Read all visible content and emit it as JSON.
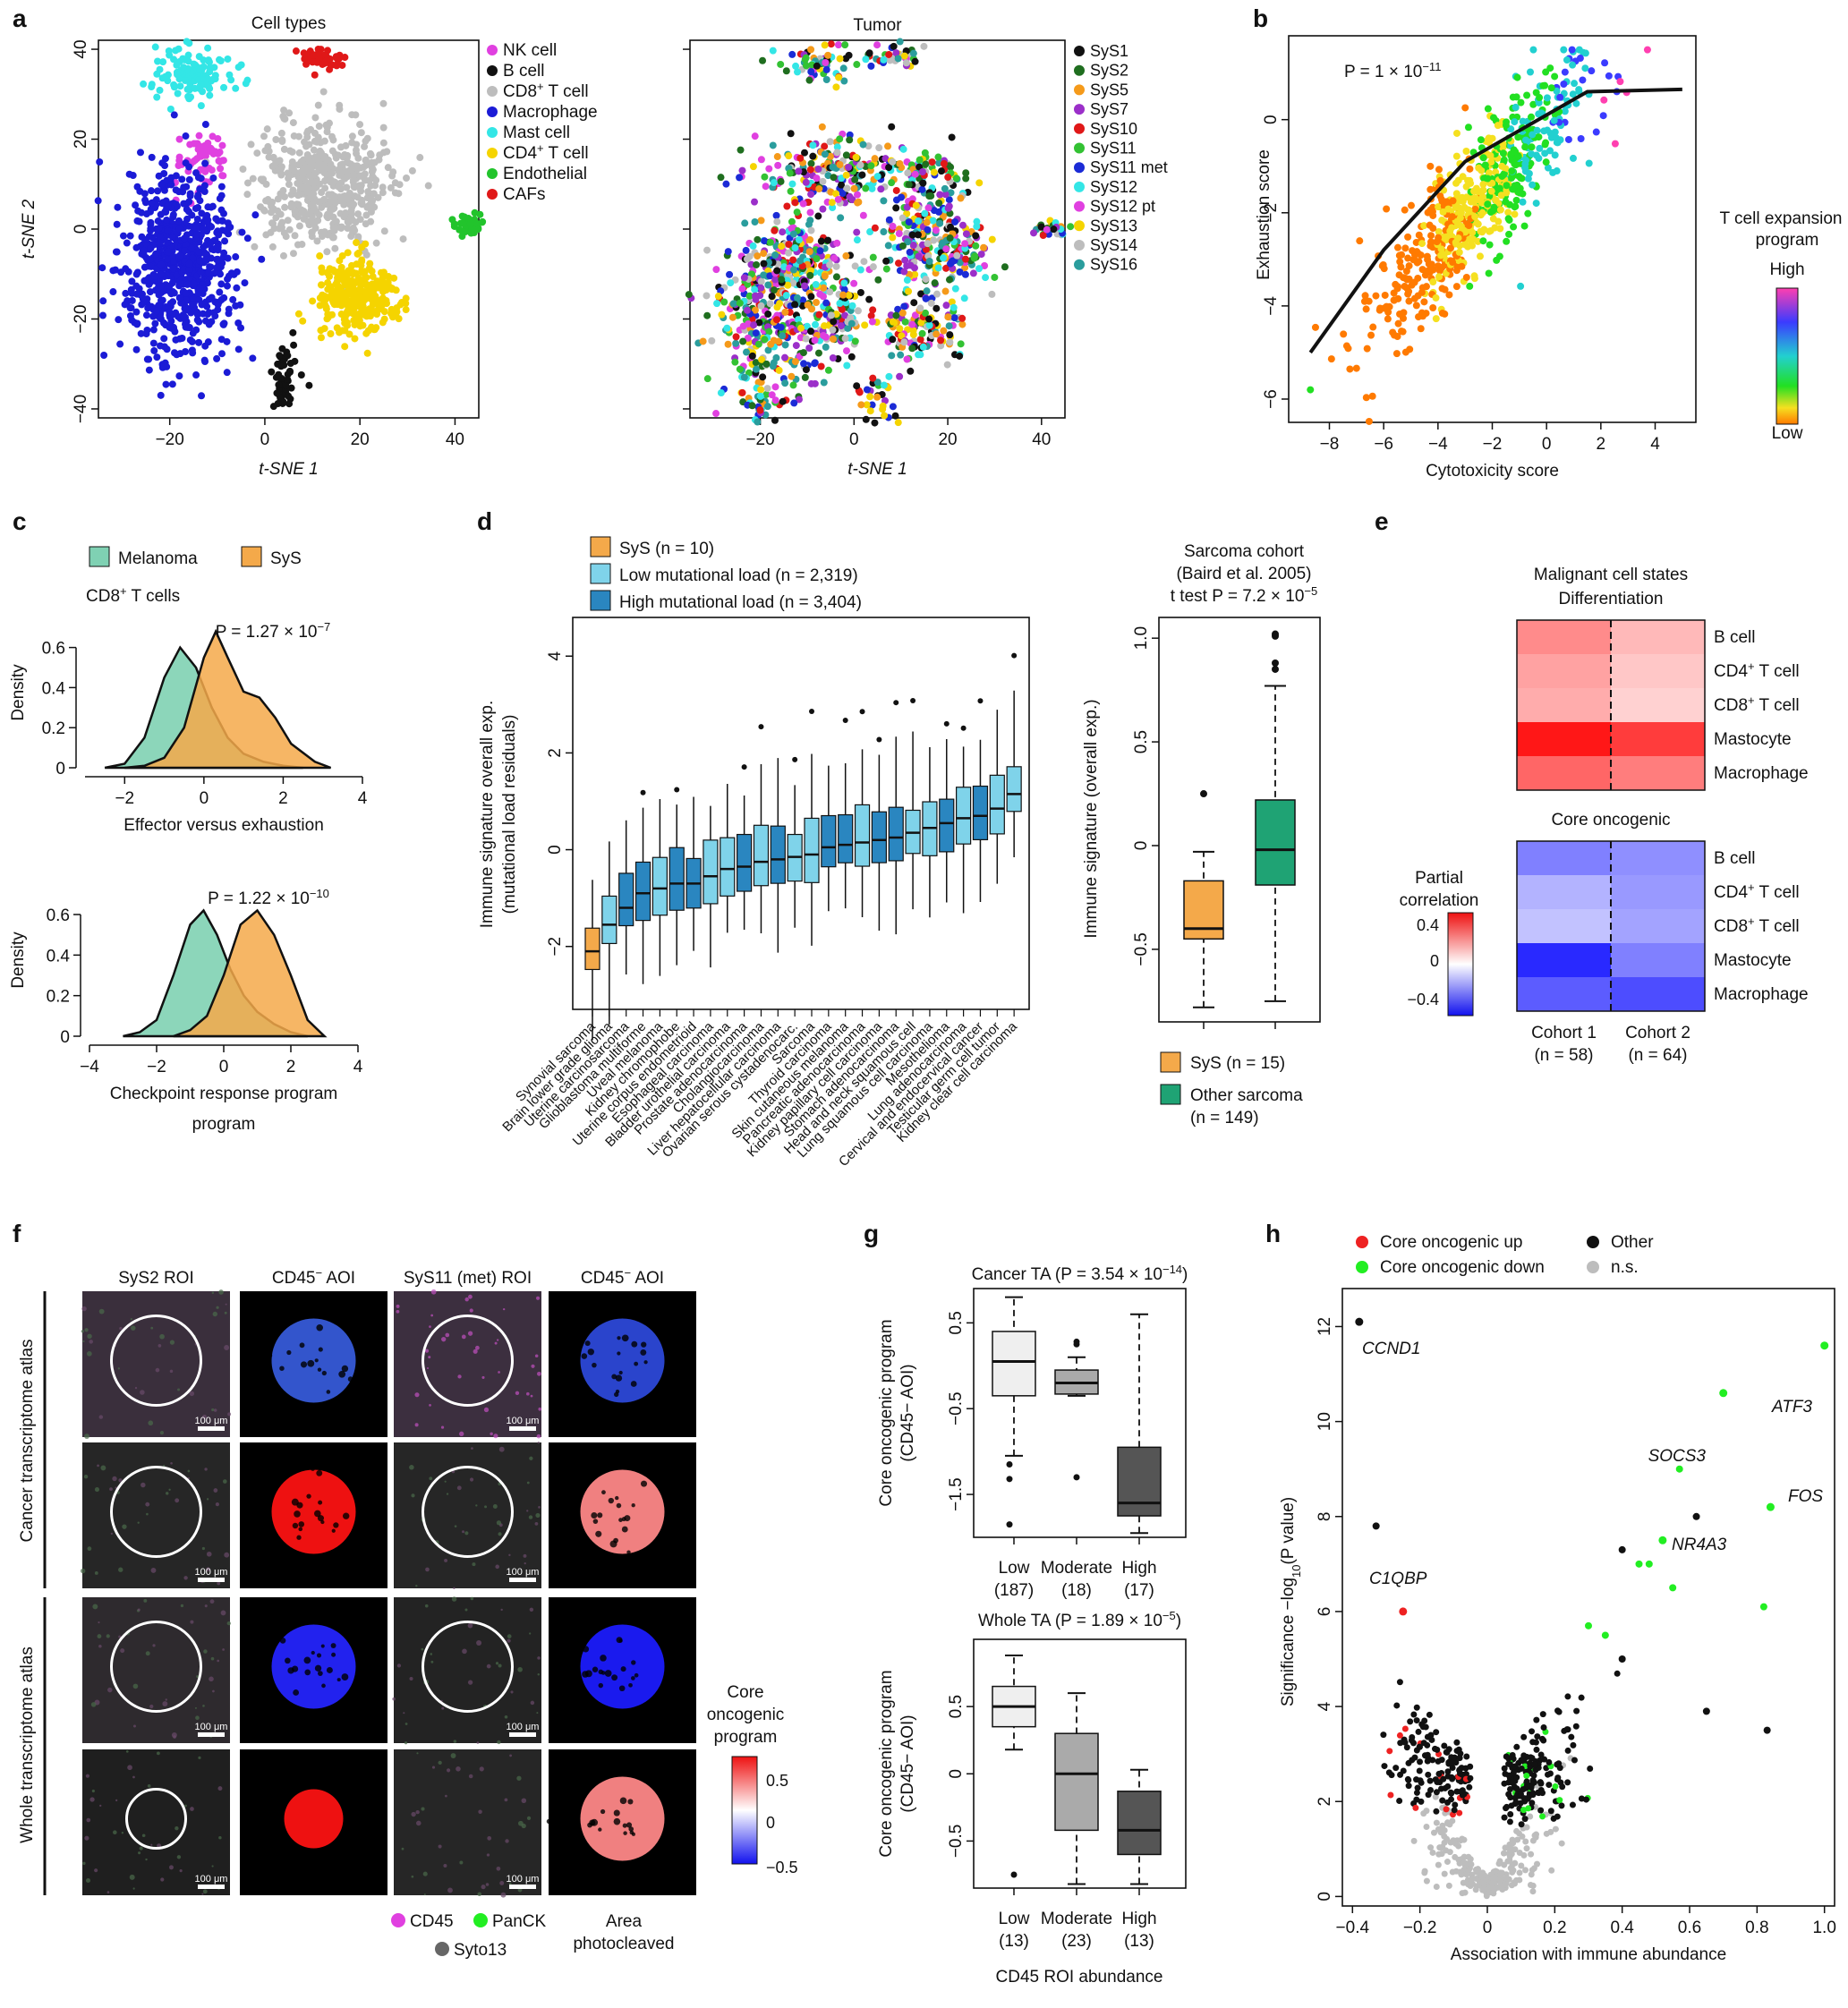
{
  "panel_letters": [
    "a",
    "b",
    "c",
    "d",
    "e",
    "f",
    "g",
    "h"
  ],
  "colors": {
    "cell_types": {
      "NK cell": "#e040e0",
      "B cell": "#111111",
      "CD8+ T cell": "#bdbdbd",
      "Macrophage": "#1b1bd6",
      "Mast cell": "#33e6e6",
      "CD4+ T cell": "#f5d400",
      "Endothelial": "#22c42c",
      "CAFs": "#e01818"
    },
    "tumors": {
      "SyS1": "#111111",
      "SyS2": "#1f6e1f",
      "SyS5": "#f59a1a",
      "SyS7": "#9b2fc9",
      "SyS10": "#e01818",
      "SyS11": "#33c233",
      "SyS11 met": "#1b2bd6",
      "SyS12": "#33e6e6",
      "SyS12 pt": "#e040e0",
      "SyS13": "#f5d400",
      "SyS14": "#bdbdbd",
      "SyS16": "#2a9d9d"
    },
    "melanoma": "#7fd1b3",
    "sys": "#f4a94a",
    "low_ml": "#7fd3ea",
    "high_ml": "#2a86c0",
    "other_sarcoma": "#1fa374",
    "core_up": "#ee2222",
    "core_down": "#22ee22",
    "other": "#111111",
    "ns": "#bdbdbd"
  },
  "chart_data": [
    {
      "id": "a1",
      "type": "scatter",
      "title": "Cell types",
      "xlabel": "t-SNE 1",
      "ylabel": "t-SNE 2",
      "xticks": [
        "−20",
        "0",
        "20",
        "40"
      ],
      "yticks": [
        "40",
        "20",
        "0",
        "−20",
        "−40"
      ],
      "xlim": [
        -35,
        45
      ],
      "ylim": [
        -42,
        42
      ],
      "legend": [
        "NK cell",
        "B cell",
        "CD8+ T cell",
        "Macrophage",
        "Mast cell",
        "CD4+ T cell",
        "Endothelial",
        "CAFs"
      ],
      "clusters": [
        {
          "name": "Mast cell",
          "cx": -15,
          "cy": 35,
          "sx": 4,
          "sy": 3,
          "n": 120
        },
        {
          "name": "CAFs",
          "cx": 12,
          "cy": 38,
          "sx": 2.5,
          "sy": 1.2,
          "n": 50
        },
        {
          "name": "NK cell",
          "cx": -13,
          "cy": 15,
          "sx": 3,
          "sy": 3,
          "n": 60
        },
        {
          "name": "CD8+ T cell",
          "cx": 12,
          "cy": 10,
          "sx": 7,
          "sy": 7,
          "n": 500
        },
        {
          "name": "Macrophage",
          "cx": -18,
          "cy": -8,
          "sx": 6,
          "sy": 10,
          "n": 700
        },
        {
          "name": "CD4+ T cell",
          "cx": 19,
          "cy": -15,
          "sx": 4,
          "sy": 4,
          "n": 300
        },
        {
          "name": "B cell",
          "cx": 4,
          "cy": -33,
          "sx": 1.5,
          "sy": 3,
          "n": 50
        },
        {
          "name": "Endothelial",
          "cx": 43,
          "cy": 1,
          "sx": 1.5,
          "sy": 1,
          "n": 40
        }
      ]
    },
    {
      "id": "a2",
      "type": "scatter",
      "title": "Tumor",
      "xlabel": "t-SNE 1",
      "xticks": [
        "−20",
        "0",
        "20",
        "40"
      ],
      "xlim": [
        -35,
        45
      ],
      "ylim": [
        -42,
        42
      ],
      "legend": [
        "SyS1",
        "SyS2",
        "SyS5",
        "SyS7",
        "SyS10",
        "SyS11",
        "SyS11 met",
        "SyS12",
        "SyS12 pt",
        "SyS13",
        "SyS14",
        "SyS16"
      ]
    },
    {
      "id": "b",
      "type": "scatter",
      "xlabel": "Cytotoxicity score",
      "ylabel": "Exhaustion score",
      "annotation": "P = 1 × 10−11",
      "xlim": [
        -9.5,
        5.5
      ],
      "ylim": [
        -6.5,
        1.8
      ],
      "xticks": [
        "−8",
        "−6",
        "−4",
        "−2",
        "0",
        "2",
        "4"
      ],
      "yticks": [
        "0",
        "−2",
        "−4",
        "−6"
      ],
      "fit": [
        [
          -8.7,
          -5.0
        ],
        [
          -6,
          -2.8
        ],
        [
          -3,
          -0.9
        ],
        [
          0,
          0.1
        ],
        [
          1.5,
          0.6
        ],
        [
          5,
          0.65
        ]
      ],
      "colorbar": {
        "title": "T cell expansion program",
        "high": "High",
        "low": "Low"
      }
    },
    {
      "id": "c1",
      "type": "area",
      "title": "CD8+ T cells",
      "xlabel": "Effector versus exhaustion",
      "ylabel": "Density",
      "annotation": "P = 1.27 × 10−7",
      "xlim": [
        -3,
        4
      ],
      "ylim": [
        0,
        0.75
      ],
      "xticks": [
        "−2",
        "0",
        "2",
        "4"
      ],
      "yticks": [
        "0",
        "0.2",
        "0.4",
        "0.6"
      ],
      "legend": [
        "Melanoma",
        "SyS"
      ],
      "series": [
        {
          "name": "Melanoma",
          "x": [
            -2.5,
            -2,
            -1.5,
            -1,
            -0.6,
            -0.2,
            0.2,
            0.6,
            1,
            1.5,
            2,
            2.5
          ],
          "values": [
            0,
            0.02,
            0.15,
            0.45,
            0.6,
            0.5,
            0.3,
            0.15,
            0.07,
            0.03,
            0.01,
            0
          ]
        },
        {
          "name": "SyS",
          "x": [
            -2,
            -1.5,
            -1,
            -0.5,
            0,
            0.3,
            0.6,
            1,
            1.4,
            1.8,
            2.2,
            2.8,
            3.2
          ],
          "values": [
            0,
            0.01,
            0.05,
            0.2,
            0.55,
            0.68,
            0.55,
            0.38,
            0.35,
            0.25,
            0.12,
            0.03,
            0
          ]
        }
      ]
    },
    {
      "id": "c2",
      "type": "area",
      "xlabel": "Checkpoint response program",
      "ylabel": "Density",
      "annotation": "P = 1.22 × 10−10",
      "xlim": [
        -4,
        4
      ],
      "ylim": [
        0,
        0.75
      ],
      "xticks": [
        "−4",
        "−2",
        "0",
        "2",
        "4"
      ],
      "yticks": [
        "0",
        "0.2",
        "0.4",
        "0.6"
      ],
      "series": [
        {
          "name": "Melanoma",
          "x": [
            -3,
            -2.5,
            -2,
            -1.5,
            -1,
            -0.6,
            -0.2,
            0.2,
            0.6,
            1,
            1.5,
            2,
            2.5
          ],
          "values": [
            0,
            0.02,
            0.08,
            0.3,
            0.55,
            0.62,
            0.5,
            0.33,
            0.2,
            0.12,
            0.06,
            0.02,
            0
          ]
        },
        {
          "name": "SyS",
          "x": [
            -1.5,
            -1,
            -0.5,
            0,
            0.5,
            1,
            1.5,
            2,
            2.5,
            3
          ],
          "values": [
            0,
            0.03,
            0.1,
            0.3,
            0.55,
            0.62,
            0.5,
            0.3,
            0.08,
            0
          ]
        }
      ]
    },
    {
      "id": "d1",
      "type": "box",
      "ylabel": "Immune signature overall exp. (mutational load residuals)",
      "ylim": [
        -3.3,
        4.8
      ],
      "yticks": [
        "−2",
        "0",
        "2",
        "4"
      ],
      "legend": [
        "SyS (n = 10)",
        "Low mutational load (n = 2,319)",
        "High mutational load (n = 3,404)"
      ],
      "categories": [
        "Synovial sarcoma",
        "Brain lower grade glioma",
        "Uterine carcinosarcoma",
        "Glioblastoma multiforme",
        "Uveal melanoma",
        "Kidney chromophobe",
        "Uterine corpus endometrioid",
        "Esophageal carcinoma",
        "Bladder urothelial carcinoma",
        "Prostate adenocarcinoma",
        "Cholangiocarcinoma",
        "Liver hepatocellular carcinoma",
        "Ovarian serous cystadenocarc.",
        "Sarcoma",
        "Thyroid carcinoma",
        "Skin cutaneous melanoma",
        "Pancreatic adenocarcinoma",
        "Kidney papillary cell carcinoma",
        "Stomach adenocarcinoma",
        "Head and neck squamous cell",
        "Lung squamous cell carcinoma",
        "Mesothelioma",
        "Lung adenocarcinoma",
        "Cervical and endocervical cancer",
        "Testicular germ cell tumor",
        "Kidney clear cell carcinoma"
      ],
      "medians": [
        -2.1,
        -1.55,
        -1.2,
        -0.9,
        -0.8,
        -0.7,
        -0.7,
        -0.55,
        -0.4,
        -0.35,
        -0.25,
        -0.2,
        -0.15,
        -0.1,
        0.05,
        0.1,
        0.15,
        0.2,
        0.25,
        0.35,
        0.45,
        0.55,
        0.65,
        0.7,
        0.85,
        1.15
      ]
    },
    {
      "id": "d2",
      "type": "box",
      "title": "Sarcoma cohort",
      "subtitle": "(Baird et al. 2005)",
      "annotation": "t test P = 7.2 × 10−5",
      "ylabel": "Immune signature (overall exp.)",
      "ylim": [
        -0.85,
        1.1
      ],
      "yticks": [
        "1.0",
        "0.5",
        "0",
        "−0.5"
      ],
      "legend": [
        "SyS (n = 15)",
        "Other sarcoma",
        "(n = 149)"
      ],
      "categories": [
        "SyS",
        "Other sarcoma"
      ],
      "medians": [
        -0.4,
        -0.02
      ],
      "q1": [
        -0.45,
        -0.19
      ],
      "q3": [
        -0.17,
        0.22
      ],
      "whisker_low": [
        -0.78,
        -0.75
      ],
      "whisker_high": [
        -0.03,
        0.77
      ]
    },
    {
      "id": "e",
      "type": "heatmap",
      "title": "Malignant cell states",
      "blocks": [
        "Differentiation",
        "Core oncogenic"
      ],
      "rows": [
        "B cell",
        "CD4+ T cell",
        "CD8+ T cell",
        "Mastocyte",
        "Macrophage"
      ],
      "columns": [
        "Cohort 1",
        "Cohort 2"
      ],
      "column_n": [
        "(n = 58)",
        "(n = 64)"
      ],
      "values_differentiation": [
        [
          0.25,
          0.15
        ],
        [
          0.2,
          0.12
        ],
        [
          0.18,
          0.1
        ],
        [
          0.5,
          0.42
        ],
        [
          0.33,
          0.28
        ]
      ],
      "values_core": [
        [
          -0.25,
          -0.22
        ],
        [
          -0.15,
          -0.2
        ],
        [
          -0.12,
          -0.18
        ],
        [
          -0.42,
          -0.25
        ],
        [
          -0.32,
          -0.35
        ]
      ],
      "colorbar": {
        "title": "Partial correlation",
        "ticks": [
          "0.4",
          "0",
          "−0.4"
        ]
      }
    },
    {
      "id": "g1",
      "type": "box",
      "title": "Cancer TA (P = 3.54 × 10−14)",
      "ylabel": "Core oncogenic program (CD45− AOI)",
      "ylim": [
        -2.0,
        0.9
      ],
      "yticks": [
        "0.5",
        "−0.5",
        "−1.5"
      ],
      "categories": [
        "Low",
        "Moderate",
        "High"
      ],
      "counts": [
        "(187)",
        "(18)",
        "(17)"
      ],
      "medians": [
        0.05,
        -0.2,
        -1.6
      ],
      "q1": [
        -0.35,
        -0.33,
        -1.75
      ],
      "q3": [
        0.4,
        -0.05,
        -0.95
      ],
      "whisker_low": [
        -1.05,
        -0.35,
        -1.95
      ],
      "whisker_high": [
        0.8,
        0.1,
        0.6
      ]
    },
    {
      "id": "g2",
      "type": "box",
      "title": "Whole TA (P = 1.89 × 10−5)",
      "ylabel": "Core oncogenic program (CD45− AOI)",
      "xlabel": "CD45+ ROI abundance",
      "ylim": [
        -0.85,
        1.0
      ],
      "yticks": [
        "0.5",
        "0",
        "−0.5"
      ],
      "categories": [
        "Low",
        "Moderate",
        "High"
      ],
      "counts": [
        "(13)",
        "(23)",
        "(13)"
      ],
      "medians": [
        0.5,
        0.0,
        -0.42
      ],
      "q1": [
        0.35,
        -0.42,
        -0.6
      ],
      "q3": [
        0.65,
        0.3,
        -0.13
      ],
      "whisker_low": [
        0.18,
        -0.82,
        -0.82
      ],
      "whisker_high": [
        0.88,
        0.6,
        0.03
      ]
    },
    {
      "id": "h",
      "type": "scatter",
      "xlabel": "Association with immune abundance",
      "ylabel": "Significance −log10(P value)",
      "xlim": [
        -0.43,
        1.03
      ],
      "ylim": [
        -0.2,
        12.8
      ],
      "xticks": [
        "−0.4",
        "−0.2",
        "0",
        "0.2",
        "0.4",
        "0.6",
        "0.8",
        "1.0"
      ],
      "yticks": [
        "0",
        "2",
        "4",
        "6",
        "8",
        "10",
        "12"
      ],
      "legend": [
        "Core oncogenic up",
        "Other",
        "Core oncogenic down",
        "n.s."
      ],
      "labeled_points": [
        {
          "label": "CCND1",
          "x": -0.38,
          "y": 12.1
        },
        {
          "label": "ATF3",
          "x": 1.0,
          "y": 11.6
        },
        {
          "label": "SOCS3",
          "x": 0.7,
          "y": 10.6
        },
        {
          "label": "FOS",
          "x": 0.84,
          "y": 8.2
        },
        {
          "label": "NR4A3",
          "x": 0.52,
          "y": 7.5
        },
        {
          "label": "C1QBP",
          "x": -0.25,
          "y": 6.0
        }
      ]
    }
  ],
  "panel_f": {
    "column_headers": [
      "SyS2 ROI",
      "CD45− AOI",
      "SyS11 (met) ROI",
      "CD45− AOI"
    ],
    "row_groups": [
      "Cancer transcriptome atlas",
      "Whole transcriptome atlas"
    ],
    "scale_label": "100 μm",
    "legend": [
      "CD45",
      "PanCK",
      "Syto13",
      "Area photocleaved"
    ],
    "colorbar": {
      "title": "Core oncogenic program",
      "ticks": [
        "0.5",
        "0",
        "−0.5"
      ]
    }
  }
}
